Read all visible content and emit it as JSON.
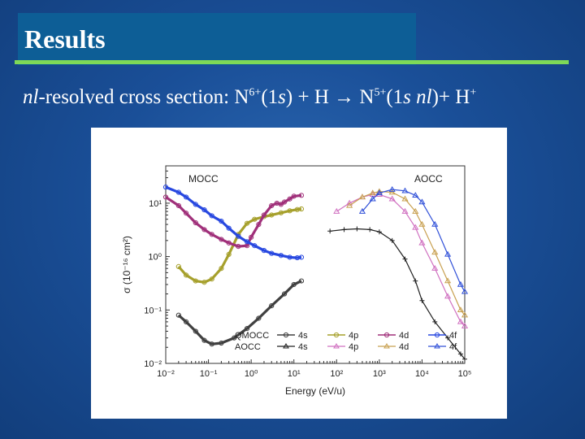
{
  "slide": {
    "title": "Results",
    "subtitle": {
      "nl": "nl",
      "text1": "-resolved cross section: N",
      "sup1": "6+",
      "text2": "(1",
      "s1": "s",
      "text3": ") + H → N",
      "sup2": "5+",
      "text4": "(1",
      "s2": "s nl",
      "text5": ")+ H",
      "sup3": "+"
    }
  },
  "colors": {
    "background": "#1a4f98",
    "title_bar": "#0d5e96",
    "accent": "#7ed957",
    "s4": "#404040",
    "p4": "#a6a02c",
    "d4": "#a0307a",
    "f4": "#2848e0"
  },
  "chart_data": {
    "type": "line",
    "x_scale": "log",
    "y_scale": "log",
    "xlim": [
      0.01,
      100000
    ],
    "ylim": [
      0.01,
      50
    ],
    "xlabel": "Energy (eV/u)",
    "ylabel": "σ (10⁻¹⁶ cm²)",
    "x_ticks": [
      "10⁻²",
      "10⁻¹",
      "10⁰",
      "10¹",
      "10²",
      "10³",
      "10⁴",
      "10⁵"
    ],
    "y_ticks": [
      "10⁻²",
      "10⁻¹",
      "10⁰",
      "10¹"
    ],
    "annotations": [
      "MOCC",
      "AOCC"
    ],
    "legend": {
      "placement": "bottom-center",
      "row_labels": [
        "QMOCC",
        "AOCC"
      ],
      "entries": [
        "4s",
        "4p",
        "4d",
        "4f"
      ]
    },
    "series": [
      {
        "name": "4s",
        "method": "QMOCC",
        "color": "#404040",
        "x": [
          0.02,
          0.03,
          0.05,
          0.08,
          0.12,
          0.2,
          0.4,
          0.8,
          1.5,
          3,
          6,
          10,
          15
        ],
        "y": [
          0.08,
          0.06,
          0.04,
          0.027,
          0.023,
          0.024,
          0.03,
          0.045,
          0.07,
          0.12,
          0.2,
          0.3,
          0.35
        ]
      },
      {
        "name": "4p",
        "method": "QMOCC",
        "color": "#a6a02c",
        "x": [
          0.02,
          0.03,
          0.05,
          0.08,
          0.12,
          0.2,
          0.3,
          0.5,
          0.8,
          1.2,
          2,
          3,
          5,
          8,
          12,
          15
        ],
        "y": [
          0.65,
          0.45,
          0.35,
          0.33,
          0.38,
          0.6,
          1.1,
          2.6,
          4.2,
          5,
          5.6,
          6,
          6.6,
          7.2,
          7.6,
          7.8
        ]
      },
      {
        "name": "4d",
        "method": "QMOCC",
        "color": "#a0307a",
        "x": [
          0.01,
          0.02,
          0.03,
          0.05,
          0.08,
          0.12,
          0.2,
          0.3,
          0.5,
          0.8,
          1,
          1.5,
          2,
          3,
          4,
          5,
          6,
          8,
          10,
          15
        ],
        "y": [
          13,
          9,
          6.5,
          4.3,
          3.2,
          2.6,
          2.1,
          1.8,
          1.55,
          1.6,
          2.3,
          4,
          6,
          9,
          10,
          9.5,
          10.5,
          12,
          13.5,
          14
        ]
      },
      {
        "name": "4f",
        "method": "QMOCC",
        "color": "#2848e0",
        "x": [
          0.01,
          0.02,
          0.03,
          0.05,
          0.08,
          0.12,
          0.2,
          0.3,
          0.5,
          0.8,
          1.2,
          2,
          3,
          5,
          8,
          12,
          15
        ],
        "y": [
          20,
          16,
          13,
          9.5,
          7.5,
          5.8,
          4.6,
          3.4,
          2.4,
          1.9,
          1.6,
          1.3,
          1.15,
          1.05,
          0.97,
          0.95,
          0.97
        ]
      },
      {
        "name": "4s",
        "method": "AOCC",
        "color": "#202020",
        "x": [
          70,
          150,
          300,
          600,
          1000,
          2000,
          4000,
          7000,
          10000,
          20000,
          40000,
          80000,
          100000
        ],
        "y": [
          3,
          3.2,
          3.3,
          3.2,
          2.9,
          2,
          0.9,
          0.35,
          0.15,
          0.06,
          0.03,
          0.015,
          0.012
        ]
      },
      {
        "name": "4p",
        "method": "AOCC",
        "color": "#d070c0",
        "x": [
          100,
          200,
          400,
          700,
          1000,
          2000,
          4000,
          7000,
          10000,
          20000,
          40000,
          80000,
          100000
        ],
        "y": [
          7,
          10,
          13,
          14.5,
          14.5,
          12,
          7,
          3.5,
          1.8,
          0.6,
          0.18,
          0.06,
          0.05
        ]
      },
      {
        "name": "4d",
        "method": "AOCC",
        "color": "#c8a050",
        "x": [
          200,
          400,
          700,
          1000,
          2000,
          4000,
          7000,
          10000,
          20000,
          40000,
          80000,
          100000
        ],
        "y": [
          9,
          13,
          15.5,
          16.5,
          16,
          12,
          7,
          4,
          1.2,
          0.35,
          0.1,
          0.08
        ]
      },
      {
        "name": "4f",
        "method": "AOCC",
        "color": "#3050d8",
        "x": [
          400,
          700,
          1000,
          2000,
          4000,
          7000,
          10000,
          20000,
          40000,
          80000,
          100000
        ],
        "y": [
          7,
          12,
          15.5,
          18,
          17,
          14,
          10.5,
          4,
          1.1,
          0.3,
          0.22
        ]
      }
    ]
  }
}
